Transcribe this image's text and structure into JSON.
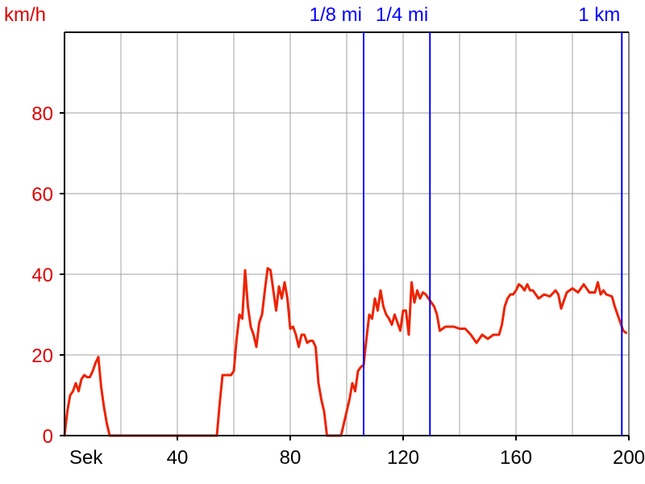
{
  "chart_data": {
    "type": "line",
    "ylabel": "km/h",
    "xlabel": "Sek",
    "xlim": [
      0,
      200
    ],
    "ylim": [
      0,
      100
    ],
    "x_ticks": [
      {
        "value": 40,
        "label": "40"
      },
      {
        "value": 80,
        "label": "80"
      },
      {
        "value": 120,
        "label": "120"
      },
      {
        "value": 160,
        "label": "160"
      },
      {
        "value": 200,
        "label": "200"
      }
    ],
    "y_ticks": [
      {
        "value": 0,
        "label": "0"
      },
      {
        "value": 20,
        "label": "20"
      },
      {
        "value": 40,
        "label": "40"
      },
      {
        "value": 60,
        "label": "60"
      },
      {
        "value": 80,
        "label": "80"
      }
    ],
    "grid": true,
    "colors": {
      "line": "#ee2200",
      "axis_y_text": "#e00000",
      "marker": "#0000ff",
      "grid": "#a0a0a0"
    },
    "markers": [
      {
        "label": "1/8 mi",
        "x": 106
      },
      {
        "label": "1/4 mi",
        "x": 129.5
      },
      {
        "label": "1 km",
        "x": 197.5
      }
    ],
    "series": [
      {
        "x": [
          0,
          1,
          2,
          3,
          4,
          5,
          6,
          7,
          8,
          9,
          10,
          11,
          12,
          13,
          14,
          15,
          16,
          17,
          18,
          20,
          25,
          30,
          35,
          40,
          45,
          50,
          54,
          55,
          56,
          57,
          58,
          59,
          60,
          61,
          62,
          63,
          64,
          65,
          66,
          67,
          68,
          69,
          70,
          71,
          72,
          73,
          74,
          75,
          76,
          77,
          78,
          79,
          80,
          81,
          82,
          83,
          84,
          85,
          86,
          87,
          88,
          89,
          90,
          91,
          92,
          93,
          95,
          98,
          100,
          101,
          102,
          103,
          104,
          105,
          106,
          107,
          108,
          109,
          110,
          111,
          112,
          113,
          114,
          115,
          116,
          117,
          118,
          119,
          120,
          121,
          122,
          123,
          124,
          125,
          126,
          127,
          128,
          129,
          130,
          131,
          132,
          133,
          135,
          138,
          140,
          142,
          144,
          146,
          148,
          150,
          152,
          154,
          155,
          156,
          157,
          158,
          159,
          160,
          161,
          162,
          163,
          164,
          165,
          166,
          168,
          170,
          172,
          174,
          175,
          176,
          178,
          180,
          182,
          184,
          186,
          188,
          189,
          190,
          191,
          192,
          194,
          195,
          196,
          197,
          198,
          199
        ],
        "values": [
          0,
          6,
          10,
          11,
          13,
          11,
          14,
          15,
          14.5,
          14.5,
          16,
          18,
          19.5,
          12,
          7,
          3,
          0,
          0,
          0,
          0,
          0,
          0,
          0,
          0,
          0,
          0,
          0,
          8,
          15,
          15,
          15,
          15,
          16,
          24,
          30,
          29,
          41,
          32,
          27,
          25,
          22,
          28,
          30,
          36,
          41.5,
          41,
          36,
          31,
          37,
          34,
          38,
          34,
          26.5,
          27,
          25,
          22,
          25,
          25,
          23,
          23.5,
          23.5,
          22,
          13,
          9,
          6,
          0,
          0,
          0,
          6,
          9,
          13,
          11,
          16,
          17,
          17.5,
          24,
          30,
          29,
          34,
          31,
          36,
          32,
          30,
          29,
          27.5,
          30,
          28,
          26,
          31,
          31,
          25,
          38,
          33,
          36,
          34,
          35.5,
          35,
          34,
          33,
          32,
          30,
          26,
          27,
          27,
          26.5,
          26.5,
          25,
          23,
          25,
          24,
          25,
          25,
          27.5,
          32,
          34,
          35,
          35,
          36,
          37.5,
          37,
          36,
          37.5,
          36,
          36,
          34,
          35,
          34.5,
          36,
          35,
          31.5,
          35.5,
          36.5,
          35.5,
          37.5,
          35.5,
          35.5,
          38,
          35,
          36,
          35,
          34.5,
          32,
          30,
          28,
          26,
          25.5
        ]
      }
    ]
  }
}
